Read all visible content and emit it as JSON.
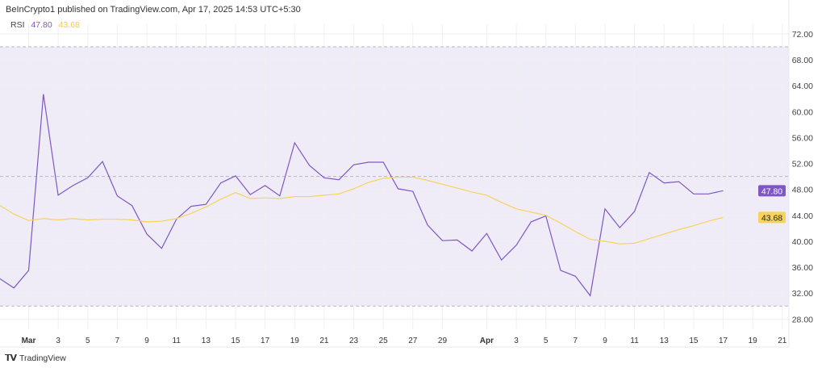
{
  "header": {
    "text": "BeInCrypto1 published on TradingView.com, Apr 17, 2025 14:53 UTC+5:30"
  },
  "legend": {
    "indicator": "RSI",
    "rsi_value": "47.80",
    "ma_value": "43.68"
  },
  "footer": {
    "brand": "TradingView",
    "logo": "TV"
  },
  "colors": {
    "rsi": "#7e57c2",
    "ma": "#f7d35c",
    "band": "#efecf8",
    "grid": "#efeff3"
  },
  "chart_data": {
    "type": "line",
    "title": "",
    "xlabel": "",
    "ylabel": "",
    "ylim": [
      26.5,
      74
    ],
    "grid": true,
    "legend": "top-left",
    "band": {
      "upper": 70,
      "middle": 50,
      "lower": 30
    },
    "y_ticks": [
      "72.00",
      "68.00",
      "64.00",
      "60.00",
      "56.00",
      "52.00",
      "48.00",
      "44.00",
      "40.00",
      "36.00",
      "32.00",
      "28.00"
    ],
    "y_tick_values": [
      72,
      68,
      64,
      60,
      56,
      52,
      48,
      44,
      40,
      36,
      32,
      28
    ],
    "x_ticks": [
      {
        "label": "Mar",
        "date": "2025-03-01"
      },
      {
        "label": "3",
        "date": "2025-03-03"
      },
      {
        "label": "5",
        "date": "2025-03-05"
      },
      {
        "label": "7",
        "date": "2025-03-07"
      },
      {
        "label": "9",
        "date": "2025-03-09"
      },
      {
        "label": "11",
        "date": "2025-03-11"
      },
      {
        "label": "13",
        "date": "2025-03-13"
      },
      {
        "label": "15",
        "date": "2025-03-15"
      },
      {
        "label": "17",
        "date": "2025-03-17"
      },
      {
        "label": "19",
        "date": "2025-03-19"
      },
      {
        "label": "21",
        "date": "2025-03-21"
      },
      {
        "label": "23",
        "date": "2025-03-23"
      },
      {
        "label": "25",
        "date": "2025-03-25"
      },
      {
        "label": "27",
        "date": "2025-03-27"
      },
      {
        "label": "29",
        "date": "2025-03-29"
      },
      {
        "label": "Apr",
        "date": "2025-04-01"
      },
      {
        "label": "3",
        "date": "2025-04-03"
      },
      {
        "label": "5",
        "date": "2025-04-05"
      },
      {
        "label": "7",
        "date": "2025-04-07"
      },
      {
        "label": "9",
        "date": "2025-04-09"
      },
      {
        "label": "11",
        "date": "2025-04-11"
      },
      {
        "label": "13",
        "date": "2025-04-13"
      },
      {
        "label": "15",
        "date": "2025-04-15"
      },
      {
        "label": "17",
        "date": "2025-04-17"
      },
      {
        "label": "19",
        "date": "2025-04-19"
      },
      {
        "label": "21",
        "date": "2025-04-21"
      }
    ],
    "x_start": "2025-02-27",
    "series": [
      {
        "key": "rsi",
        "values": [
          34.3,
          32.8,
          35.5,
          62.7,
          47.1,
          48.6,
          49.8,
          52.3,
          47.0,
          45.5,
          41.1,
          38.9,
          43.4,
          45.4,
          45.7,
          49.0,
          50.1,
          47.2,
          48.6,
          47.0,
          55.2,
          51.7,
          49.8,
          49.5,
          51.8,
          52.2,
          52.2,
          48.1,
          47.7,
          42.5,
          40.1,
          40.2,
          38.5,
          41.2,
          37.1,
          39.4,
          43.0,
          43.9,
          35.5,
          34.6,
          31.6,
          45.0,
          42.1,
          44.6,
          50.6,
          49.0,
          49.2,
          47.3,
          47.3,
          47.8
        ]
      },
      {
        "key": "ma",
        "values": [
          45.6,
          44.2,
          43.2,
          43.5,
          43.3,
          43.5,
          43.3,
          43.4,
          43.4,
          43.3,
          43.0,
          43.1,
          43.5,
          44.3,
          45.3,
          46.5,
          47.5,
          46.6,
          46.7,
          46.6,
          46.9,
          46.9,
          47.1,
          47.3,
          48.1,
          49.1,
          49.7,
          49.9,
          49.9,
          49.4,
          48.8,
          48.2,
          47.6,
          47.1,
          46.0,
          45.0,
          44.5,
          44.0,
          42.8,
          41.5,
          40.3,
          40.0,
          39.6,
          39.7,
          40.4,
          41.1,
          41.8,
          42.4,
          43.1,
          43.68
        ]
      }
    ]
  }
}
